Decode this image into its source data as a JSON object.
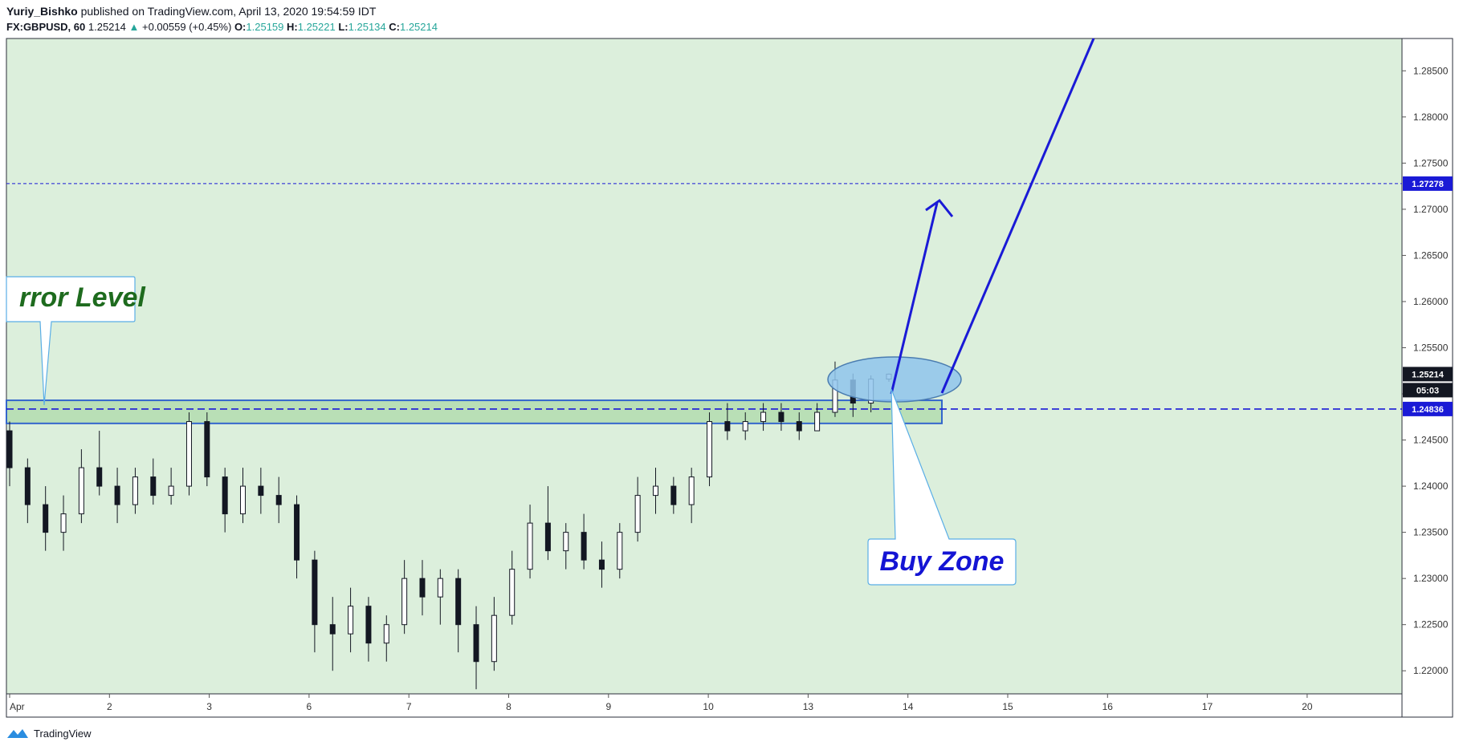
{
  "header": {
    "author": "Yuriy_Bishko",
    "published_text": "published on TradingView.com, April 13, 2020 19:54:59 IDT",
    "symbol_interval": "FX:GBPUSD, 60",
    "last_price": "1.25214",
    "change_arrow": "▲",
    "change": "+0.00559 (+0.45%)",
    "open_label": "O:",
    "open": "1.25159",
    "high_label": "H:",
    "high": "1.25221",
    "low_label": "L:",
    "low": "1.25134",
    "close_label": "C:",
    "close": "1.25214"
  },
  "footer": {
    "brand": "TradingView",
    "logo_icon": "tradingview-logo-icon"
  },
  "colors": {
    "background": "#dcefdc",
    "axis_bg": "#ffffff",
    "bull_candle": "#ffffff",
    "bear_candle": "#131722",
    "wick": "#131722",
    "line_blue": "#1a1ad6",
    "dashed_blue": "#1a1ad6",
    "zone_fill": "#b9dfb6",
    "zone_border": "#3366cc",
    "ellipse_fill": "#8fc4ec",
    "ellipse_stroke": "#4a7cb0",
    "label_error": "#1e6b1e",
    "label_buy": "#1414d4",
    "callout_border": "#5aaee6",
    "price_badge_last": "#131722",
    "price_badge_blue": "#1a1ad6"
  },
  "annotations": {
    "error_label": "rror Level",
    "buy_label": "Buy Zone",
    "countdown": "05:03",
    "level_upper": "1.27278",
    "level_lower": "1.24836",
    "last_badge": "1.25214"
  },
  "chart_data": {
    "type": "candlestick",
    "symbol": "FX:GBPUSD",
    "interval": "60",
    "ylim": [
      1.2175,
      1.2885
    ],
    "y_ticks": [
      "1.22000",
      "1.22500",
      "1.23000",
      "1.23500",
      "1.24000",
      "1.24500",
      "1.25000",
      "1.25500",
      "1.26000",
      "1.26500",
      "1.27000",
      "1.27500",
      "1.28000",
      "1.28500"
    ],
    "x_ticks": [
      "Apr",
      "2",
      "3",
      "6",
      "7",
      "8",
      "9",
      "10",
      "13",
      "14",
      "15",
      "16",
      "17",
      "20"
    ],
    "horizontal_levels": [
      1.27278,
      1.24836
    ],
    "zone": {
      "low": 1.2468,
      "high": 1.2493
    },
    "series": [
      {
        "values_ohlc": [
          [
            1.246,
            1.247,
            1.24,
            1.242
          ],
          [
            1.242,
            1.243,
            1.236,
            1.238
          ],
          [
            1.238,
            1.24,
            1.233,
            1.235
          ],
          [
            1.235,
            1.239,
            1.233,
            1.237
          ],
          [
            1.237,
            1.244,
            1.236,
            1.242
          ],
          [
            1.242,
            1.246,
            1.239,
            1.24
          ],
          [
            1.24,
            1.242,
            1.236,
            1.238
          ],
          [
            1.238,
            1.242,
            1.237,
            1.241
          ],
          [
            1.241,
            1.243,
            1.238,
            1.239
          ],
          [
            1.239,
            1.242,
            1.238,
            1.24
          ],
          [
            1.24,
            1.248,
            1.239,
            1.247
          ],
          [
            1.247,
            1.248,
            1.24,
            1.241
          ],
          [
            1.241,
            1.242,
            1.235,
            1.237
          ],
          [
            1.237,
            1.242,
            1.236,
            1.24
          ],
          [
            1.24,
            1.242,
            1.237,
            1.239
          ],
          [
            1.239,
            1.241,
            1.236,
            1.238
          ],
          [
            1.238,
            1.239,
            1.23,
            1.232
          ],
          [
            1.232,
            1.233,
            1.222,
            1.225
          ],
          [
            1.225,
            1.228,
            1.22,
            1.224
          ],
          [
            1.224,
            1.229,
            1.222,
            1.227
          ],
          [
            1.227,
            1.228,
            1.221,
            1.223
          ],
          [
            1.223,
            1.226,
            1.221,
            1.225
          ],
          [
            1.225,
            1.232,
            1.224,
            1.23
          ],
          [
            1.23,
            1.232,
            1.226,
            1.228
          ],
          [
            1.228,
            1.231,
            1.225,
            1.23
          ],
          [
            1.23,
            1.231,
            1.222,
            1.225
          ],
          [
            1.225,
            1.227,
            1.218,
            1.221
          ],
          [
            1.221,
            1.228,
            1.22,
            1.226
          ],
          [
            1.226,
            1.233,
            1.225,
            1.231
          ],
          [
            1.231,
            1.238,
            1.23,
            1.236
          ],
          [
            1.236,
            1.24,
            1.232,
            1.233
          ],
          [
            1.233,
            1.236,
            1.231,
            1.235
          ],
          [
            1.235,
            1.237,
            1.231,
            1.232
          ],
          [
            1.232,
            1.234,
            1.229,
            1.231
          ],
          [
            1.231,
            1.236,
            1.23,
            1.235
          ],
          [
            1.235,
            1.241,
            1.234,
            1.239
          ],
          [
            1.239,
            1.242,
            1.237,
            1.24
          ],
          [
            1.24,
            1.241,
            1.237,
            1.238
          ],
          [
            1.238,
            1.242,
            1.236,
            1.241
          ],
          [
            1.241,
            1.248,
            1.24,
            1.247
          ],
          [
            1.247,
            1.249,
            1.245,
            1.246
          ],
          [
            1.246,
            1.248,
            1.245,
            1.247
          ],
          [
            1.247,
            1.249,
            1.246,
            1.248
          ],
          [
            1.248,
            1.249,
            1.246,
            1.247
          ],
          [
            1.247,
            1.248,
            1.245,
            1.246
          ],
          [
            1.246,
            1.249,
            1.246,
            1.248
          ],
          [
            1.248,
            1.2535,
            1.2475,
            1.2515
          ],
          [
            1.2515,
            1.2522,
            1.2475,
            1.249
          ],
          [
            1.249,
            1.252,
            1.248,
            1.2516
          ],
          [
            1.2516,
            1.2522,
            1.2513,
            1.25214
          ]
        ]
      }
    ]
  }
}
